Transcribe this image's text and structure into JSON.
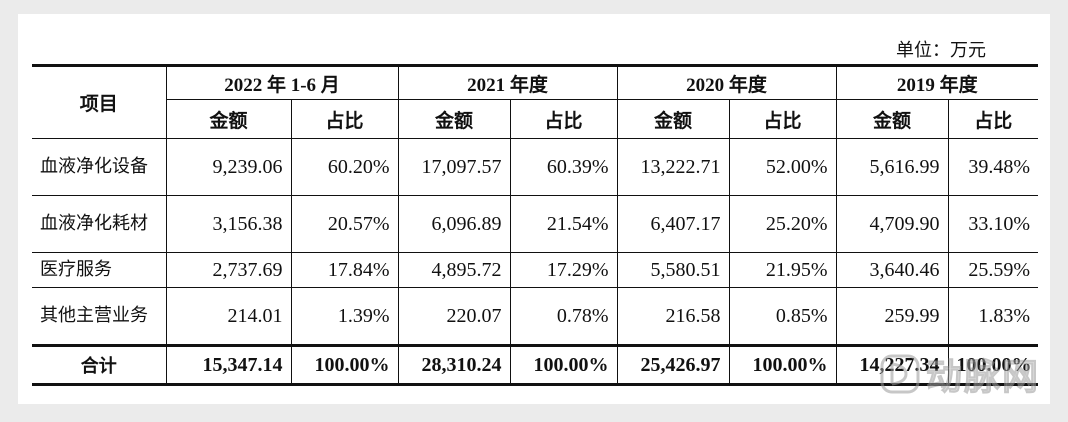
{
  "unit_label": "单位：万元",
  "table": {
    "item_header": "项目",
    "periods": [
      "2022 年 1-6 月",
      "2021 年度",
      "2020 年度",
      "2019 年度"
    ],
    "amount_label": "金额",
    "ratio_label": "占比",
    "rows": [
      {
        "category": "血液净化设备",
        "values": [
          "9,239.06",
          "60.20%",
          "17,097.57",
          "60.39%",
          "13,222.71",
          "52.00%",
          "5,616.99",
          "39.48%"
        ]
      },
      {
        "category": "血液净化耗材",
        "values": [
          "3,156.38",
          "20.57%",
          "6,096.89",
          "21.54%",
          "6,407.17",
          "25.20%",
          "4,709.90",
          "33.10%"
        ]
      },
      {
        "category": "医疗服务",
        "values": [
          "2,737.69",
          "17.84%",
          "4,895.72",
          "17.29%",
          "5,580.51",
          "21.95%",
          "3,640.46",
          "25.59%"
        ]
      },
      {
        "category": "其他主营业务",
        "values": [
          "214.01",
          "1.39%",
          "220.07",
          "0.78%",
          "216.58",
          "0.85%",
          "259.99",
          "1.83%"
        ]
      }
    ],
    "total": {
      "category": "合计",
      "values": [
        "15,347.14",
        "100.00%",
        "28,310.24",
        "100.00%",
        "25,426.97",
        "100.00%",
        "14,227.34",
        "100.00%"
      ]
    }
  },
  "watermark": {
    "text": "动脉网",
    "icon": "arterial-network-logo-icon"
  }
}
